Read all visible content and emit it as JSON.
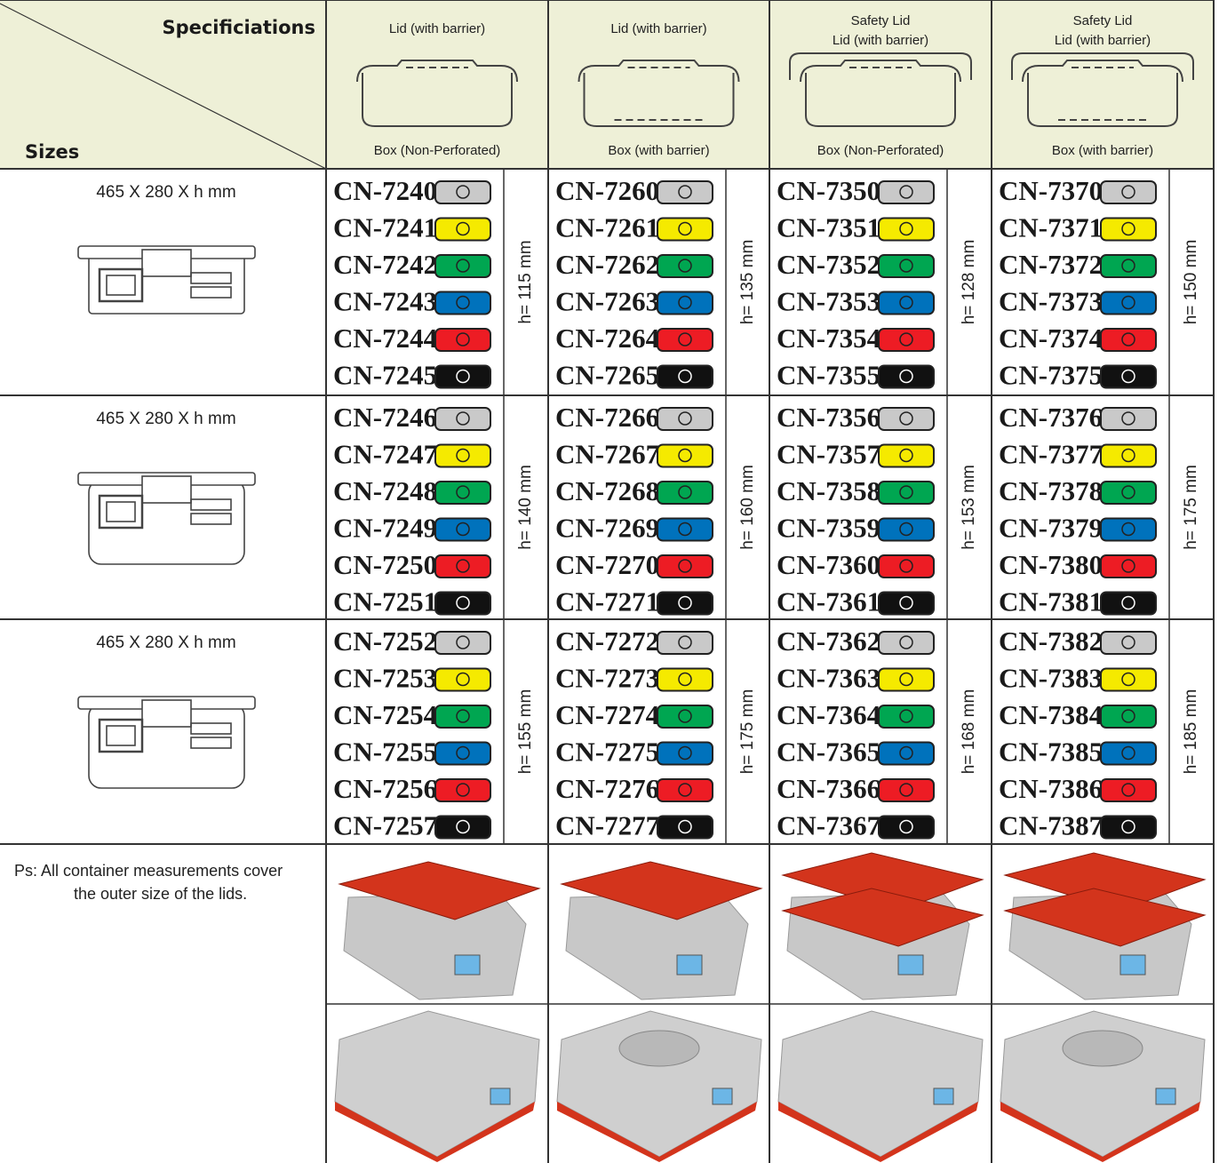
{
  "header": {
    "specifications": "Specificiations",
    "sizes": "Sizes"
  },
  "columns": [
    {
      "lid": [
        "Lid (with barrier)"
      ],
      "box": "Box (Non-Perforated)"
    },
    {
      "lid": [
        "Lid (with barrier)"
      ],
      "box": "Box (with barrier)"
    },
    {
      "lid": [
        "Safety Lid",
        "Lid (with barrier)"
      ],
      "box": "Box (Non-Perforated)"
    },
    {
      "lid": [
        "Safety Lid",
        "Lid (with barrier)"
      ],
      "box": "Box (with barrier)"
    }
  ],
  "rows": [
    {
      "size": "465 X 280 X h mm",
      "groups": [
        {
          "codes": [
            "CN-7240",
            "CN-7241",
            "CN-7242",
            "CN-7243",
            "CN-7244",
            "CN-7245"
          ],
          "height": "h= 115 mm"
        },
        {
          "codes": [
            "CN-7260",
            "CN-7261",
            "CN-7262",
            "CN-7263",
            "CN-7264",
            "CN-7265"
          ],
          "height": "h= 135 mm"
        },
        {
          "codes": [
            "CN-7350",
            "CN-7351",
            "CN-7352",
            "CN-7353",
            "CN-7354",
            "CN-7355"
          ],
          "height": "h= 128 mm"
        },
        {
          "codes": [
            "CN-7370",
            "CN-7371",
            "CN-7372",
            "CN-7373",
            "CN-7374",
            "CN-7375"
          ],
          "height": "h= 150 mm"
        }
      ]
    },
    {
      "size": "465 X 280 X h mm",
      "groups": [
        {
          "codes": [
            "CN-7246",
            "CN-7247",
            "CN-7248",
            "CN-7249",
            "CN-7250",
            "CN-7251"
          ],
          "height": "h= 140 mm"
        },
        {
          "codes": [
            "CN-7266",
            "CN-7267",
            "CN-7268",
            "CN-7269",
            "CN-7270",
            "CN-7271"
          ],
          "height": "h= 160 mm"
        },
        {
          "codes": [
            "CN-7356",
            "CN-7357",
            "CN-7358",
            "CN-7359",
            "CN-7360",
            "CN-7361"
          ],
          "height": "h= 153 mm"
        },
        {
          "codes": [
            "CN-7376",
            "CN-7377",
            "CN-7378",
            "CN-7379",
            "CN-7380",
            "CN-7381"
          ],
          "height": "h= 175 mm"
        }
      ]
    },
    {
      "size": "465 X 280 X h mm",
      "groups": [
        {
          "codes": [
            "CN-7252",
            "CN-7253",
            "CN-7254",
            "CN-7255",
            "CN-7256",
            "CN-7257"
          ],
          "height": "h= 155 mm"
        },
        {
          "codes": [
            "CN-7272",
            "CN-7273",
            "CN-7274",
            "CN-7275",
            "CN-7276",
            "CN-7277"
          ],
          "height": "h= 175 mm"
        },
        {
          "codes": [
            "CN-7362",
            "CN-7363",
            "CN-7364",
            "CN-7365",
            "CN-7366",
            "CN-7367"
          ],
          "height": "h= 168 mm"
        },
        {
          "codes": [
            "CN-7382",
            "CN-7383",
            "CN-7384",
            "CN-7385",
            "CN-7386",
            "CN-7387"
          ],
          "height": "h= 185 mm"
        }
      ]
    }
  ],
  "tag_colors": [
    "#c9c9c9",
    "#f5ea00",
    "#00a651",
    "#0072bc",
    "#ed1c24",
    "#111111"
  ],
  "note": [
    "Ps: All container measurements cover",
    "the outer size of the lids."
  ]
}
